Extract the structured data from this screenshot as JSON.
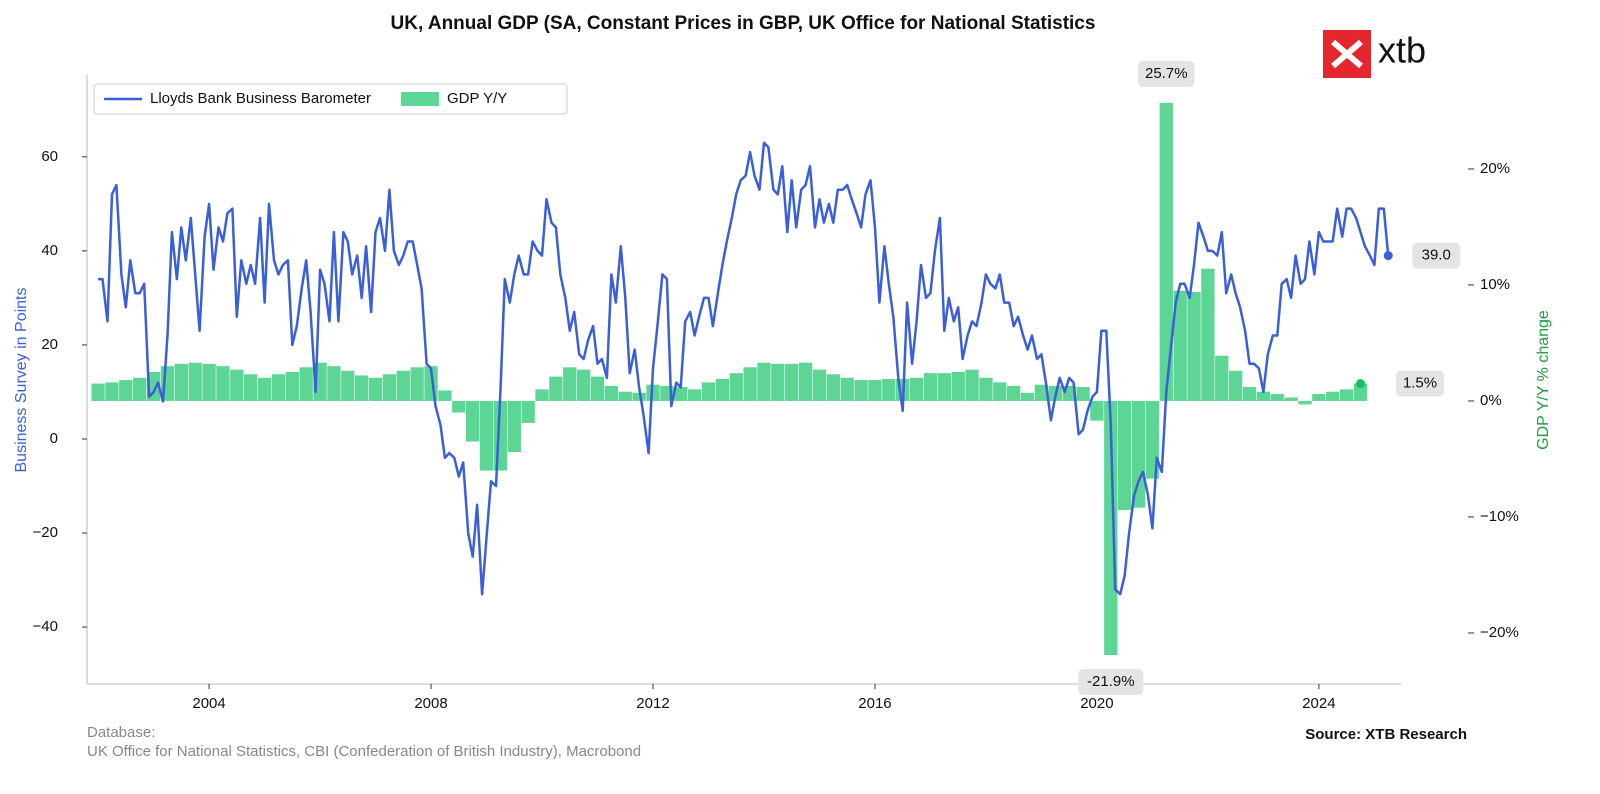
{
  "chart_data": {
    "type": "combo",
    "title": "UK, Annual GDP (SA, Constant Prices in GBP, UK Office for National Statistics",
    "ylabel": "Business Survey in Points",
    "y2label": "GDP Y/Y % change",
    "logo": "xtb",
    "database_label": "Database:",
    "database": "UK Office for National Statistics, CBI (Confederation of British Industry), Macrobond",
    "source": "Source: XTB Research",
    "legend": "upper left",
    "xlim": [
      2001.8,
      2025.48
    ],
    "xticks": [
      2004,
      2008,
      2012,
      2016,
      2020,
      2024
    ],
    "ylim": [
      -52.1,
      77.4
    ],
    "yticks": [
      {
        "value": -40,
        "label": "−40"
      },
      {
        "value": -20,
        "label": "−20"
      },
      0,
      20,
      40,
      60
    ],
    "y2lim": [
      -24.4,
      28.1
    ],
    "y2ticks": [
      {
        "value": -20,
        "label": "−20%"
      },
      {
        "value": -10,
        "label": "−10%"
      },
      {
        "value": 0,
        "label": "0%"
      },
      {
        "value": 10,
        "label": "10%"
      },
      {
        "value": 20,
        "label": "20%"
      }
    ],
    "series": [
      {
        "name": "Lloyds Bank Business Barometer",
        "type": "line",
        "color": "#3a5fd9",
        "axis": "y",
        "x": [
          2002,
          2002.08,
          2002.17,
          2002.25,
          2002.33,
          2002.42,
          2002.5,
          2002.58,
          2002.67,
          2002.75,
          2002.83,
          2002.92,
          2003,
          2003.08,
          2003.17,
          2003.25,
          2003.33,
          2003.42,
          2003.5,
          2003.58,
          2003.67,
          2003.75,
          2003.83,
          2003.92,
          2004,
          2004.08,
          2004.17,
          2004.25,
          2004.33,
          2004.42,
          2004.5,
          2004.58,
          2004.67,
          2004.75,
          2004.83,
          2004.92,
          2005,
          2005.08,
          2005.17,
          2005.25,
          2005.33,
          2005.42,
          2005.5,
          2005.58,
          2005.67,
          2005.75,
          2005.83,
          2005.92,
          2006,
          2006.08,
          2006.17,
          2006.25,
          2006.33,
          2006.42,
          2006.5,
          2006.58,
          2006.67,
          2006.75,
          2006.83,
          2006.92,
          2007,
          2007.08,
          2007.17,
          2007.25,
          2007.33,
          2007.42,
          2007.5,
          2007.58,
          2007.67,
          2007.75,
          2007.83,
          2007.92,
          2008,
          2008.08,
          2008.17,
          2008.25,
          2008.33,
          2008.42,
          2008.5,
          2008.58,
          2008.67,
          2008.75,
          2008.83,
          2008.92,
          2009,
          2009.08,
          2009.17,
          2009.25,
          2009.33,
          2009.42,
          2009.5,
          2009.58,
          2009.67,
          2009.75,
          2009.83,
          2009.92,
          2010,
          2010.08,
          2010.17,
          2010.25,
          2010.33,
          2010.42,
          2010.5,
          2010.58,
          2010.67,
          2010.75,
          2010.83,
          2010.92,
          2011,
          2011.08,
          2011.17,
          2011.25,
          2011.33,
          2011.42,
          2011.5,
          2011.58,
          2011.67,
          2011.75,
          2011.83,
          2011.92,
          2012,
          2012.08,
          2012.17,
          2012.25,
          2012.33,
          2012.42,
          2012.5,
          2012.58,
          2012.67,
          2012.75,
          2012.83,
          2012.92,
          2013,
          2013.08,
          2013.17,
          2013.25,
          2013.33,
          2013.42,
          2013.5,
          2013.58,
          2013.67,
          2013.75,
          2013.83,
          2013.92,
          2014,
          2014.08,
          2014.17,
          2014.25,
          2014.33,
          2014.42,
          2014.5,
          2014.58,
          2014.67,
          2014.75,
          2014.83,
          2014.92,
          2015,
          2015.08,
          2015.17,
          2015.25,
          2015.33,
          2015.42,
          2015.5,
          2015.58,
          2015.67,
          2015.75,
          2015.83,
          2015.92,
          2016,
          2016.08,
          2016.17,
          2016.25,
          2016.33,
          2016.42,
          2016.5,
          2016.58,
          2016.67,
          2016.75,
          2016.83,
          2016.92,
          2017,
          2017.08,
          2017.17,
          2017.25,
          2017.33,
          2017.42,
          2017.5,
          2017.58,
          2017.67,
          2017.75,
          2017.83,
          2017.92,
          2018,
          2018.08,
          2018.17,
          2018.25,
          2018.33,
          2018.42,
          2018.5,
          2018.58,
          2018.67,
          2018.75,
          2018.83,
          2018.92,
          2019,
          2019.08,
          2019.17,
          2019.25,
          2019.33,
          2019.42,
          2019.5,
          2019.58,
          2019.67,
          2019.75,
          2019.83,
          2019.92,
          2020,
          2020.08,
          2020.17,
          2020.25,
          2020.33,
          2020.42,
          2020.5,
          2020.58,
          2020.67,
          2020.75,
          2020.83,
          2020.92,
          2021,
          2021.08,
          2021.17,
          2021.25,
          2021.33,
          2021.42,
          2021.5,
          2021.58,
          2021.67,
          2021.75,
          2021.83,
          2021.92,
          2022,
          2022.08,
          2022.17,
          2022.25,
          2022.33,
          2022.42,
          2022.5,
          2022.58,
          2022.67,
          2022.75,
          2022.83,
          2022.92,
          2023,
          2023.08,
          2023.17,
          2023.25,
          2023.33,
          2023.42,
          2023.5,
          2023.58,
          2023.67,
          2023.75,
          2023.83,
          2023.92,
          2024,
          2024.08,
          2024.17,
          2024.25,
          2024.33,
          2024.42,
          2024.5,
          2024.58,
          2024.67,
          2024.75,
          2024.83,
          2024.92,
          2025,
          2025.08,
          2025.17,
          2025.25
        ],
        "values": [
          34,
          34,
          25,
          52,
          54,
          35,
          28,
          38,
          31,
          31,
          33,
          9,
          10,
          12,
          8,
          22,
          44,
          34,
          45,
          38,
          47,
          35,
          23,
          43,
          50,
          36,
          45,
          42,
          48,
          49,
          26,
          38,
          33,
          37,
          33,
          47,
          29,
          50,
          38,
          35,
          37,
          38,
          20,
          24,
          32,
          38,
          27,
          10,
          36,
          33,
          25,
          44,
          25,
          44,
          42,
          35,
          39,
          30,
          41,
          27,
          44,
          47,
          40,
          53,
          40,
          37,
          39,
          42,
          42,
          37,
          32,
          16,
          15,
          7,
          3,
          -4,
          -3,
          -4,
          -8,
          -5,
          -20,
          -25,
          -14,
          -33,
          -21,
          -9,
          -10,
          10,
          34,
          29,
          35,
          39,
          35,
          35,
          42,
          40,
          39,
          51,
          46,
          45,
          35,
          30,
          23,
          27,
          18,
          17,
          21,
          24,
          16,
          17,
          13,
          35,
          29,
          41,
          30,
          14,
          19,
          11,
          5,
          -3,
          15,
          24,
          35,
          34,
          7,
          12,
          11,
          25,
          27,
          22,
          26,
          30,
          30,
          24,
          31,
          37,
          42,
          47,
          52,
          55,
          56,
          61,
          56,
          53,
          63,
          62,
          53,
          52,
          58,
          44,
          55,
          45,
          53,
          54,
          58,
          45,
          51,
          46,
          50,
          46,
          53,
          53,
          54,
          51,
          48,
          45,
          52,
          55,
          45,
          29,
          41,
          33,
          26,
          13,
          6,
          29,
          16,
          25,
          37,
          30,
          31,
          40,
          47,
          23,
          30,
          25,
          28,
          17,
          22,
          25,
          24,
          29,
          35,
          33,
          32,
          35,
          29,
          29,
          24,
          26,
          22,
          19,
          22,
          17,
          18,
          12,
          4,
          9,
          13,
          10,
          13,
          12,
          1,
          2,
          6,
          9,
          10,
          23,
          23,
          3,
          -32,
          -33,
          -29,
          -20,
          -12,
          -9,
          -7,
          -12,
          -19,
          -4,
          -7,
          10,
          19,
          29,
          33,
          33,
          30,
          37,
          46,
          43,
          40,
          40,
          39,
          44,
          31,
          35,
          31,
          28,
          23,
          16,
          16,
          15,
          10,
          18,
          22,
          22,
          33,
          34,
          30,
          39,
          33,
          34,
          42,
          35,
          44,
          42,
          42,
          42,
          49,
          43,
          49,
          49,
          47,
          44,
          41,
          39,
          37,
          49,
          49,
          39
        ],
        "value_labels": [
          null,
          null,
          null,
          null,
          null,
          null,
          null,
          null,
          null,
          null,
          null,
          null,
          null,
          null,
          null,
          null,
          null,
          null,
          null,
          null,
          null,
          null,
          null,
          null,
          null,
          null,
          null,
          null,
          null,
          null,
          null,
          null,
          null,
          null,
          null,
          null,
          null,
          null,
          null,
          null,
          null,
          null,
          null,
          null,
          null,
          null,
          null,
          null,
          null,
          null,
          null,
          null,
          null,
          null,
          null,
          null,
          null,
          null,
          null,
          null,
          null,
          null,
          null,
          null,
          null,
          null,
          null,
          null,
          null,
          null,
          null,
          null,
          null,
          null,
          null,
          null,
          null,
          null,
          null,
          null,
          null,
          null,
          null,
          null,
          null,
          null,
          null,
          null,
          null,
          null,
          null,
          null,
          null,
          null,
          null,
          null,
          null,
          null,
          null,
          null,
          null,
          null,
          null,
          null,
          null,
          null,
          null,
          null,
          null,
          null,
          null,
          null,
          null,
          null,
          null,
          null,
          null,
          null,
          null,
          null,
          null,
          null,
          null,
          null,
          null,
          null,
          null,
          null,
          null,
          null,
          null,
          null,
          null,
          null,
          null,
          null,
          null,
          null,
          null,
          null,
          null,
          null,
          null,
          null,
          null,
          null,
          null,
          null,
          null,
          null,
          null,
          null,
          null,
          null,
          null,
          null,
          null,
          null,
          null,
          null,
          null,
          null,
          null,
          null,
          null,
          null,
          null,
          null,
          null,
          null,
          null,
          null,
          null,
          null,
          null,
          null,
          null,
          null,
          null,
          null,
          null,
          null,
          null,
          null,
          null,
          null,
          null,
          null,
          null,
          null,
          null,
          null,
          null,
          null,
          null,
          null,
          null,
          null,
          null,
          null,
          null,
          null,
          null,
          null,
          null,
          null,
          null,
          null,
          null,
          null,
          null,
          null,
          null,
          null,
          null,
          null,
          null,
          null,
          null,
          null,
          null,
          null,
          null,
          null,
          null,
          null,
          null,
          null,
          null,
          null,
          null,
          null,
          null,
          null,
          null,
          null,
          null,
          null,
          null,
          null,
          null,
          null,
          null,
          null,
          null,
          null,
          null,
          null,
          null,
          null,
          null,
          null,
          null,
          null,
          null,
          null,
          null,
          null,
          null,
          null,
          null,
          null,
          null,
          null,
          null,
          null,
          null,
          null,
          null,
          null,
          null,
          null,
          null,
          null,
          null,
          null,
          null,
          null,
          null,
          "39.0"
        ]
      },
      {
        "name": "GDP Y/Y",
        "type": "bar",
        "color": "#5dd594",
        "axis": "y2",
        "x": [
          2002,
          2002.25,
          2002.5,
          2002.75,
          2003,
          2003.25,
          2003.5,
          2003.75,
          2004,
          2004.25,
          2004.5,
          2004.75,
          2005,
          2005.25,
          2005.5,
          2005.75,
          2006,
          2006.25,
          2006.5,
          2006.75,
          2007,
          2007.25,
          2007.5,
          2007.75,
          2008,
          2008.25,
          2008.5,
          2008.75,
          2009,
          2009.25,
          2009.5,
          2009.75,
          2010,
          2010.25,
          2010.5,
          2010.75,
          2011,
          2011.25,
          2011.5,
          2011.75,
          2012,
          2012.25,
          2012.5,
          2012.75,
          2013,
          2013.25,
          2013.5,
          2013.75,
          2014,
          2014.25,
          2014.5,
          2014.75,
          2015,
          2015.25,
          2015.5,
          2015.75,
          2016,
          2016.25,
          2016.5,
          2016.75,
          2017,
          2017.25,
          2017.5,
          2017.75,
          2018,
          2018.25,
          2018.5,
          2018.75,
          2019,
          2019.25,
          2019.5,
          2019.75,
          2020,
          2020.25,
          2020.5,
          2020.75,
          2021,
          2021.25,
          2021.5,
          2021.75,
          2022,
          2022.25,
          2022.5,
          2022.75,
          2023,
          2023.25,
          2023.5,
          2023.75,
          2024,
          2024.25,
          2024.5,
          2024.75
        ],
        "values": [
          1.5,
          1.6,
          1.8,
          2.0,
          2.5,
          3.0,
          3.2,
          3.3,
          3.2,
          3.0,
          2.7,
          2.3,
          2.0,
          2.3,
          2.5,
          2.9,
          3.3,
          3.0,
          2.6,
          2.2,
          2.0,
          2.3,
          2.6,
          2.9,
          3.0,
          0.9,
          -1.0,
          -3.5,
          -6.0,
          -6.0,
          -4.4,
          -1.9,
          1.0,
          2.1,
          2.9,
          2.7,
          2.1,
          1.3,
          0.8,
          0.7,
          1.4,
          1.3,
          1.2,
          1.0,
          1.6,
          1.9,
          2.4,
          2.9,
          3.3,
          3.2,
          3.2,
          3.3,
          2.7,
          2.3,
          2.0,
          1.8,
          1.8,
          1.9,
          1.9,
          2.0,
          2.4,
          2.4,
          2.5,
          2.7,
          2.0,
          1.6,
          1.3,
          0.7,
          1.4,
          1.3,
          1.3,
          1.2,
          -1.7,
          -21.9,
          -9.4,
          -9.2,
          -6.7,
          25.7,
          9.5,
          9.4,
          11.4,
          3.9,
          2.6,
          1.2,
          0.8,
          0.6,
          0.3,
          -0.3,
          0.6,
          0.8,
          1.0,
          1.5
        ],
        "value_labels": [
          null,
          null,
          null,
          null,
          null,
          null,
          null,
          null,
          null,
          null,
          null,
          null,
          null,
          null,
          null,
          null,
          null,
          null,
          null,
          null,
          null,
          null,
          null,
          null,
          null,
          null,
          null,
          null,
          null,
          null,
          null,
          null,
          null,
          null,
          null,
          null,
          null,
          null,
          null,
          null,
          null,
          null,
          null,
          null,
          null,
          null,
          null,
          null,
          null,
          null,
          null,
          null,
          null,
          null,
          null,
          null,
          null,
          null,
          null,
          null,
          null,
          null,
          null,
          null,
          null,
          null,
          null,
          null,
          null,
          null,
          null,
          null,
          null,
          "-21.9%",
          null,
          null,
          null,
          "25.7%",
          null,
          null,
          null,
          null,
          null,
          null,
          null,
          null,
          null,
          null,
          null,
          null,
          null,
          "1.5%"
        ]
      }
    ]
  }
}
